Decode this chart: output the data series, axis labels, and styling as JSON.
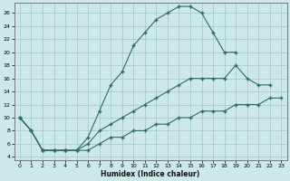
{
  "background_color": "#cce8e8",
  "grid_color": "#aacccc",
  "line_color": "#2d6e62",
  "xlabel": "Humidex (Indice chaleur)",
  "xlim": [
    -0.5,
    23.5
  ],
  "ylim": [
    3.5,
    27.5
  ],
  "xticks": [
    0,
    1,
    2,
    3,
    4,
    5,
    6,
    7,
    8,
    9,
    10,
    11,
    12,
    13,
    14,
    15,
    16,
    17,
    18,
    19,
    20,
    21,
    22,
    23
  ],
  "yticks": [
    4,
    6,
    8,
    10,
    12,
    14,
    16,
    18,
    20,
    22,
    24,
    26
  ],
  "line1_x": [
    0,
    1,
    2,
    3,
    4,
    5,
    6,
    7,
    8,
    9,
    10,
    11,
    12,
    13,
    14,
    15,
    16,
    17,
    18,
    19
  ],
  "line1_y": [
    10,
    8,
    5,
    5,
    5,
    5,
    7,
    11,
    15,
    17,
    21,
    23,
    25,
    26,
    27,
    27,
    26,
    23,
    20,
    20
  ],
  "line2_x": [
    0,
    1,
    2,
    3,
    4,
    5,
    6,
    7,
    8,
    9,
    10,
    11,
    12,
    13,
    14,
    15,
    16,
    17,
    18,
    19,
    20,
    21,
    22
  ],
  "line2_y": [
    10,
    8,
    5,
    5,
    5,
    5,
    6,
    8,
    9,
    10,
    11,
    12,
    13,
    14,
    15,
    16,
    16,
    16,
    16,
    18,
    16,
    15,
    15
  ],
  "line3_x": [
    0,
    1,
    2,
    3,
    4,
    5,
    6,
    7,
    8,
    9,
    10,
    11,
    12,
    13,
    14,
    15,
    16,
    17,
    18,
    19,
    20,
    21,
    22,
    23
  ],
  "line3_y": [
    10,
    8,
    5,
    5,
    5,
    5,
    5,
    6,
    7,
    7,
    8,
    8,
    9,
    9,
    10,
    10,
    11,
    11,
    11,
    12,
    12,
    12,
    13,
    13
  ]
}
